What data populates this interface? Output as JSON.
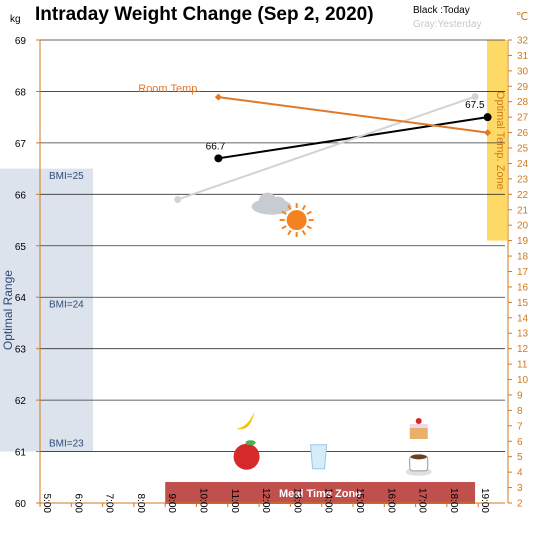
{
  "chart_data": {
    "type": "line",
    "title": "Intraday Weight Change (Sep 2, 2020)",
    "legend_note": {
      "today": "Black :Today",
      "yesterday": "Gray:Yesterday"
    },
    "y_left": {
      "unit": "kg",
      "min": 60,
      "max": 69,
      "ticks": [
        60,
        61,
        62,
        63,
        64,
        65,
        66,
        67,
        68,
        69
      ]
    },
    "y_right": {
      "unit": "℃",
      "min": 2,
      "max": 32,
      "ticks": [
        2,
        3,
        4,
        5,
        6,
        7,
        8,
        9,
        10,
        11,
        12,
        13,
        14,
        15,
        16,
        17,
        18,
        19,
        20,
        21,
        22,
        23,
        24,
        25,
        26,
        27,
        28,
        29,
        30,
        31,
        32
      ]
    },
    "x": {
      "min": 5,
      "max": 19.5,
      "ticks": [
        "5:00",
        "6:00",
        "7:00",
        "8:00",
        "9:00",
        "10:00",
        "11:00",
        "12:00",
        "13:00",
        "14:00",
        "15:00",
        "16:00",
        "17:00",
        "18:00",
        "19:00"
      ]
    },
    "series": [
      {
        "name": "Today",
        "color": "#000000",
        "axis": "left",
        "points": [
          {
            "x": 10.7,
            "y": 66.7
          },
          {
            "x": 19.3,
            "y": 67.5
          }
        ],
        "labels": [
          "66.7",
          "67.5"
        ]
      },
      {
        "name": "Yesterday",
        "color": "#d3d3d3",
        "axis": "left",
        "points": [
          {
            "x": 9.4,
            "y": 65.9
          },
          {
            "x": 18.9,
            "y": 67.9
          }
        ]
      },
      {
        "name": "Room Temp.",
        "color": "#e0782a",
        "axis": "right",
        "points": [
          {
            "x": 10.7,
            "y": 28.3
          },
          {
            "x": 19.3,
            "y": 26.0
          }
        ]
      }
    ],
    "bands": {
      "optimal_range": {
        "label": "Optimal Range",
        "y_from": 61,
        "y_to": 66.5,
        "color": "#dce3ec"
      },
      "bmi_labels": [
        {
          "text": "BMI=25",
          "y": 66.3
        },
        {
          "text": "BMI=24",
          "y": 63.8
        },
        {
          "text": "BMI=23",
          "y": 61.1
        }
      ],
      "temp_zone": {
        "label": "Optimal Temp. Zone",
        "y_from": 19,
        "y_to": 32,
        "color": "#ffd966"
      },
      "meal_zone": {
        "label": "Meal Time Zone",
        "x_from": 9,
        "x_to": 18.9,
        "color": "#c0504d"
      }
    },
    "icons": [
      {
        "name": "banana-icon",
        "x": 11.6,
        "y": 61.6
      },
      {
        "name": "apple-icon",
        "x": 11.6,
        "y": 60.9
      },
      {
        "name": "water-glass-icon",
        "x": 13.9,
        "y": 60.9
      },
      {
        "name": "cake-icon",
        "x": 17.1,
        "y": 61.4
      },
      {
        "name": "coffee-icon",
        "x": 17.1,
        "y": 60.8
      },
      {
        "name": "cloud-icon",
        "x": 12.4,
        "y": 65.8
      },
      {
        "name": "sun-icon",
        "x": 13.2,
        "y": 65.5
      }
    ],
    "grid": true,
    "colors": {
      "axis_right": "#d07a1c",
      "band_label": "#2e4a7a",
      "grid": "#333333"
    }
  }
}
